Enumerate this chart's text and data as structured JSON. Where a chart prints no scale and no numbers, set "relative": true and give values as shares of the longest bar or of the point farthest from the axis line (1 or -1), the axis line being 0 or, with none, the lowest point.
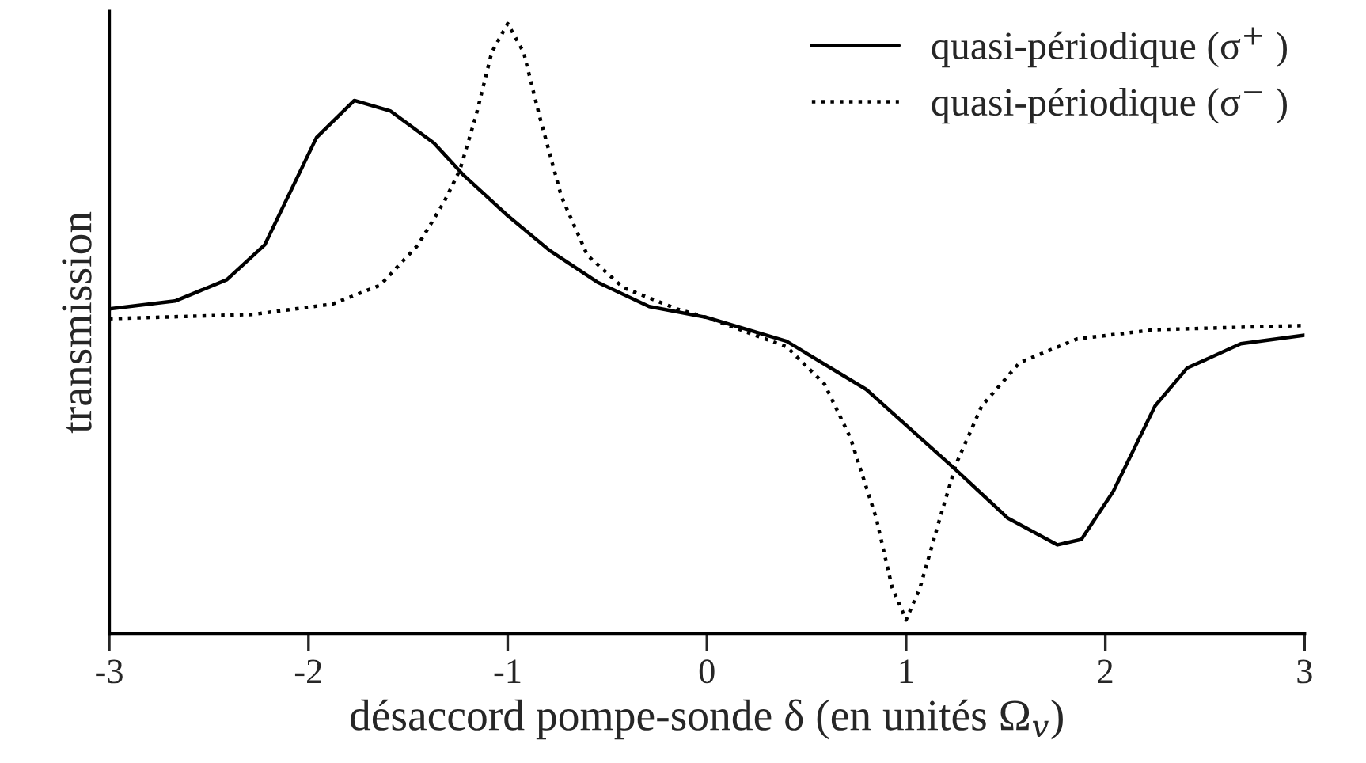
{
  "chart_data": {
    "type": "line",
    "relative": true,
    "xlabel": "désaccord pompe-sonde δ (en unités Ω$_{v}$)",
    "ylabel": "transmission",
    "xlim": [
      -3,
      3
    ],
    "xticks": [
      -3,
      -2,
      -1,
      0,
      1,
      2,
      3
    ],
    "grid": false,
    "legend": "top right",
    "marker": "none",
    "series": [
      {
        "name": "quasi-périodique (σ$^{+}$ )",
        "color": "#000000",
        "line_style": "solid",
        "x": [
          -3,
          -2.67,
          -2.41,
          -2.22,
          -2.09,
          -1.96,
          -1.77,
          -1.59,
          -1.37,
          -1.22,
          -1.0,
          -0.79,
          -0.55,
          -0.29,
          0,
          0.4,
          0.8,
          1.25,
          1.51,
          1.76,
          1.88,
          2.04,
          2.25,
          2.41,
          2.68,
          3
        ],
        "values": [
          0.532,
          0.545,
          0.58,
          0.637,
          0.725,
          0.813,
          0.874,
          0.857,
          0.804,
          0.751,
          0.685,
          0.628,
          0.576,
          0.536,
          0.518,
          0.479,
          0.4,
          0.268,
          0.189,
          0.145,
          0.154,
          0.233,
          0.373,
          0.435,
          0.475,
          0.489
        ]
      },
      {
        "name": "quasi-périodique (σ$^{−}$ )",
        "color": "#000000",
        "line_style": "dotted",
        "x": [
          -3,
          -2.28,
          -1.88,
          -1.64,
          -1.45,
          -1.32,
          -1.24,
          -1.16,
          -1.08,
          -1.0,
          -0.92,
          -0.84,
          -0.73,
          -0.6,
          -0.42,
          -0.15,
          0,
          0.4,
          0.59,
          0.72,
          0.85,
          0.93,
          1.0,
          1.07,
          1.17,
          1.25,
          1.38,
          1.57,
          1.86,
          2.25,
          3
        ],
        "values": [
          0.516,
          0.523,
          0.54,
          0.571,
          0.637,
          0.707,
          0.76,
          0.848,
          0.953,
          1.0,
          0.953,
          0.848,
          0.716,
          0.62,
          0.567,
          0.532,
          0.518,
          0.47,
          0.409,
          0.321,
          0.189,
          0.075,
          0.022,
          0.075,
          0.189,
          0.277,
          0.373,
          0.444,
          0.483,
          0.498,
          0.505
        ]
      }
    ]
  }
}
